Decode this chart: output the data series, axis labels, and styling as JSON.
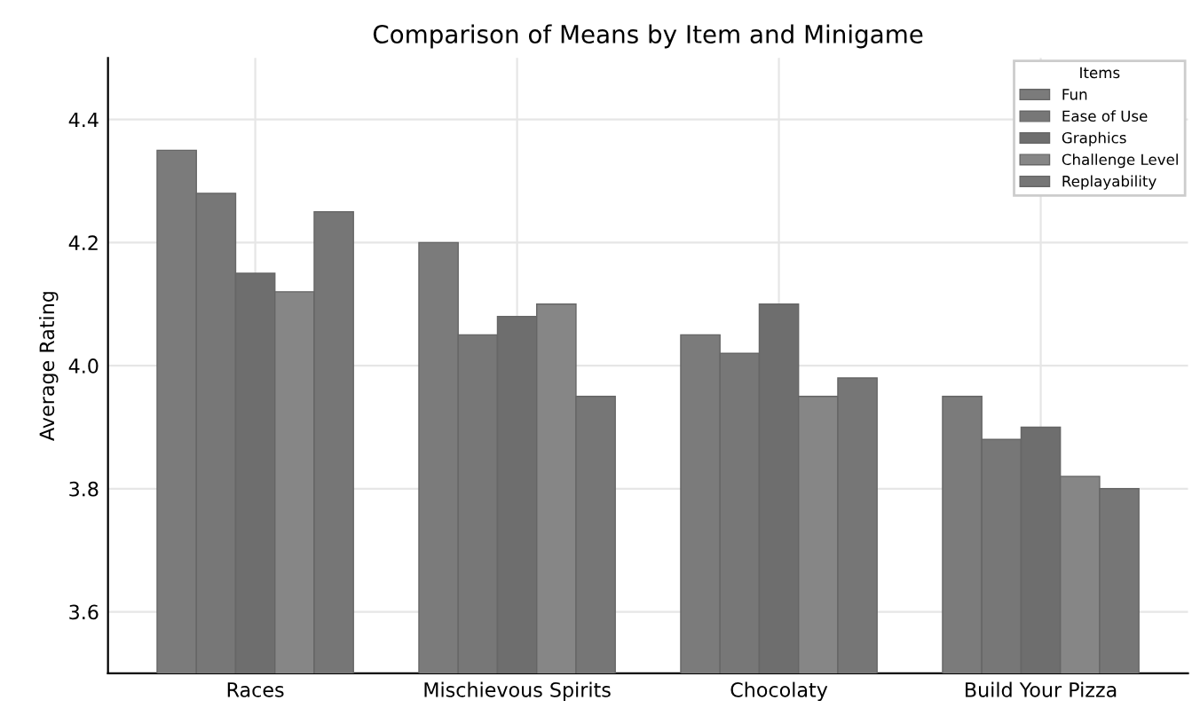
{
  "chart_data": {
    "type": "bar",
    "title": "Comparison of Means by Item and Minigame",
    "ylabel": "Average Rating",
    "legend_title": "Items",
    "categories": [
      "Races",
      "Mischievous Spirits",
      "Chocolaty",
      "Build Your Pizza"
    ],
    "series": [
      {
        "name": "Fun",
        "color": "#7b7b7b",
        "values": [
          4.35,
          4.2,
          4.05,
          3.95
        ]
      },
      {
        "name": "Ease of Use",
        "color": "#777777",
        "values": [
          4.28,
          4.05,
          4.02,
          3.88
        ]
      },
      {
        "name": "Graphics",
        "color": "#6e6e6e",
        "values": [
          4.15,
          4.08,
          4.1,
          3.9
        ]
      },
      {
        "name": "Challenge Level",
        "color": "#868686",
        "values": [
          4.12,
          4.1,
          3.95,
          3.82
        ]
      },
      {
        "name": "Replayability",
        "color": "#767676",
        "values": [
          4.25,
          3.95,
          3.98,
          3.8
        ]
      }
    ],
    "ylim": [
      3.5,
      4.5
    ],
    "yticks": [
      3.6,
      3.8,
      {
        "value": 4.0,
        "label": "4.0"
      },
      4.2,
      4.4
    ],
    "grid": true,
    "legend": "top right"
  }
}
